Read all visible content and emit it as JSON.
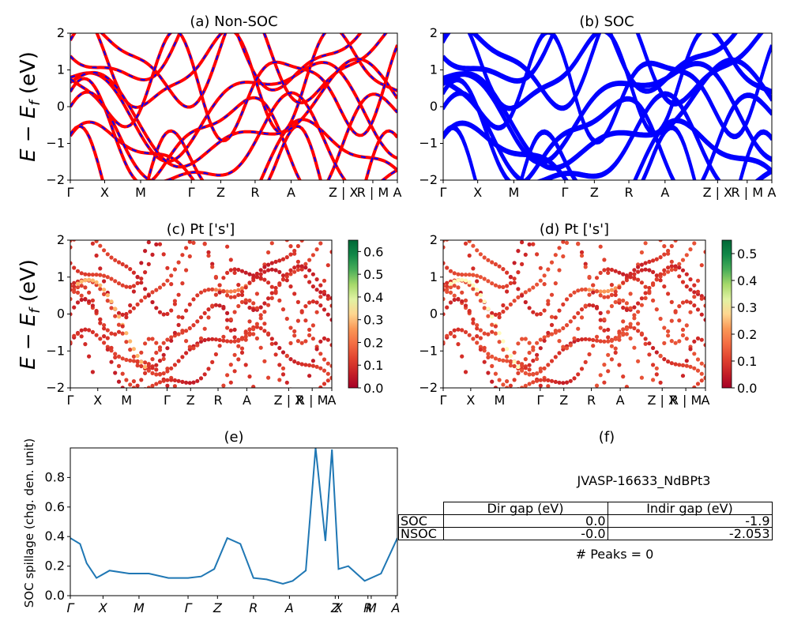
{
  "figure": {
    "ylabel_latex": "E − E",
    "ylabel_sub": "f",
    "ylabel_unit": " (eV)",
    "kpath": [
      "Γ",
      "X",
      "M",
      "Γ",
      "Z",
      "R",
      "A",
      "Z | X",
      "R | M",
      "A"
    ],
    "kpath_small": [
      "Γ",
      "X",
      "M",
      "Γ",
      "Z",
      "R",
      "A",
      "Z | X",
      "R | M",
      "A"
    ],
    "kpath_e": [
      "Γ",
      "X",
      "M",
      "Γ",
      "Z",
      "R",
      "A",
      "Z",
      "X",
      "R",
      "M",
      "A"
    ],
    "yticks": [
      "−2",
      "−1",
      "0",
      "1",
      "2"
    ]
  },
  "panels": {
    "a": {
      "title": "(a) Non-SOC"
    },
    "b": {
      "title": "(b) SOC"
    },
    "c": {
      "title": "(c)  Pt ['s']",
      "cbar_ticks": [
        "0.0",
        "0.1",
        "0.2",
        "0.3",
        "0.4",
        "0.5",
        "0.6"
      ],
      "cbar_max": 0.65
    },
    "d": {
      "title": "(d) Pt ['s']",
      "cbar_ticks": [
        "0.0",
        "0.1",
        "0.2",
        "0.3",
        "0.4",
        "0.5"
      ],
      "cbar_max": 0.55
    },
    "e": {
      "title": "(e)",
      "ylabel": "SOC spillage (chg. den. unit)",
      "yticks": [
        "0.0",
        "0.2",
        "0.4",
        "0.6",
        "0.8"
      ]
    },
    "f": {
      "title": "(f)",
      "material": "JVASP-16633_NdBPt3",
      "peaks": "# Peaks = 0"
    }
  },
  "gap_table": {
    "headers": [
      "",
      "Dir gap (eV)",
      "Indir gap (eV)"
    ],
    "rows": [
      {
        "label": "SOC",
        "dir": "0.0",
        "indir": "-1.9"
      },
      {
        "label": "NSOC",
        "dir": "-0.0",
        "indir": "-2.053"
      }
    ]
  },
  "colors": {
    "nonsoc_red": "#ff0000",
    "nonsoc_blue": "#0000ff",
    "soc": "#0000ff",
    "spillage": "#1f77b4"
  },
  "chart_data": [
    {
      "type": "line",
      "title": "(a) Non-SOC",
      "ylabel": "E − Ef (eV)",
      "ylim": [
        -2,
        2
      ],
      "xtick_labels": [
        "Γ",
        "X",
        "M",
        "Γ",
        "Z",
        "R",
        "A",
        "Z | X",
        "R | M",
        "A"
      ],
      "series": [
        {
          "values": [
            -2.0,
            -1.5,
            -0.4,
            0.3,
            1.1,
            1.8
          ]
        },
        {
          "values": [
            0.2,
            1.3,
            0.4,
            -0.3,
            -1.0,
            0.8
          ]
        }
      ]
    },
    {
      "type": "line",
      "title": "(b) SOC",
      "ylabel": "",
      "ylim": [
        -2,
        2
      ],
      "xtick_labels": [
        "Γ",
        "X",
        "M",
        "Γ",
        "Z",
        "R",
        "A",
        "Z | X",
        "R | M",
        "A"
      ],
      "series": [
        {
          "values": [
            -2.0,
            -1.5,
            -0.4,
            0.3,
            1.1,
            1.8
          ]
        },
        {
          "values": [
            0.2,
            1.3,
            0.4,
            -0.3,
            -1.0,
            0.8
          ]
        }
      ]
    },
    {
      "type": "scatter",
      "title": "(c)  Pt ['s']",
      "ylim": [
        -2,
        2
      ],
      "colorbar_range": [
        0,
        0.65
      ]
    },
    {
      "type": "scatter",
      "title": "(d) Pt ['s']",
      "ylim": [
        -2,
        2
      ],
      "colorbar_range": [
        0,
        0.55
      ]
    },
    {
      "type": "line",
      "title": "(e)",
      "ylabel": "SOC spillage (chg. den. unit)",
      "ylim": [
        0,
        1.0
      ],
      "x": [
        0,
        0.03,
        0.05,
        0.08,
        0.12,
        0.18,
        0.24,
        0.3,
        0.36,
        0.4,
        0.44,
        0.48,
        0.52,
        0.56,
        0.6,
        0.65,
        0.68,
        0.72,
        0.75,
        0.78,
        0.8,
        0.82,
        0.85,
        0.9,
        0.95,
        1.0
      ],
      "values": [
        0.39,
        0.35,
        0.22,
        0.12,
        0.17,
        0.15,
        0.15,
        0.12,
        0.12,
        0.13,
        0.18,
        0.39,
        0.35,
        0.12,
        0.11,
        0.08,
        0.1,
        0.17,
        1.0,
        0.37,
        0.99,
        0.18,
        0.2,
        0.1,
        0.15,
        0.39
      ]
    },
    {
      "type": "table",
      "title": "(f)"
    }
  ]
}
